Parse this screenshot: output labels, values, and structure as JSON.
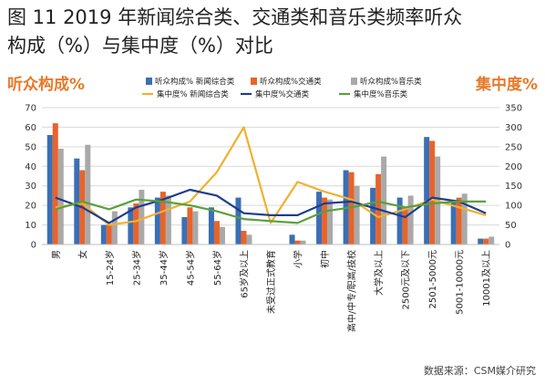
{
  "title": {
    "line1": "图 11 2019 年新闻综合类、交通类和音乐类频率听众",
    "line2": "构成（%）与集中度（%）对比"
  },
  "source": "数据来源：CSM媒介研究",
  "chart_data": {
    "type": "bar",
    "ylabel_left": "听众构成%",
    "ylabel_right": "集中度%",
    "ylim_left": [
      0,
      70
    ],
    "ylim_right": [
      0,
      350
    ],
    "yticks_left": [
      "0",
      "10",
      "20",
      "30",
      "40",
      "50",
      "60",
      "70"
    ],
    "yticks_right": [
      "0",
      "50",
      "100",
      "150",
      "200",
      "250",
      "300",
      "350"
    ],
    "legend_position": "top",
    "categories": [
      "男",
      "女",
      "15-24岁",
      "25-34岁",
      "35-44岁",
      "45-54岁",
      "55-64岁",
      "65岁及以上",
      "未受过正式教育",
      "小学",
      "初中",
      "高中/中专/职高/技校",
      "大学及以上",
      "2500元及以下",
      "2501-5000元",
      "5001-10000元",
      "10001及以上"
    ],
    "bar_series": [
      {
        "name": "听众构成% 新闻综合类",
        "color": "#3a6fb5",
        "values": [
          56,
          44,
          10,
          19,
          24,
          14,
          19,
          24,
          0,
          5,
          27,
          38,
          29,
          24,
          55,
          22,
          3
        ]
      },
      {
        "name": "听众构成%交通类",
        "color": "#e8632a",
        "values": [
          62,
          38,
          10,
          21,
          27,
          19,
          12,
          7,
          0,
          2,
          24,
          37,
          36,
          19,
          53,
          24,
          3
        ]
      },
      {
        "name": "听众构成%音乐类",
        "color": "#a9a9a9",
        "values": [
          49,
          51,
          17,
          28,
          25,
          17,
          9,
          5,
          0,
          2,
          23,
          30,
          45,
          25,
          45,
          26,
          4
        ]
      }
    ],
    "line_series": [
      {
        "name": "集中度% 新闻综合类",
        "color": "#f0b030",
        "values": [
          95,
          105,
          50,
          60,
          85,
          110,
          185,
          300,
          55,
          160,
          135,
          115,
          70,
          90,
          115,
          95,
          75
        ]
      },
      {
        "name": "集中度%交通类",
        "color": "#1f3d8c",
        "values": [
          120,
          95,
          55,
          95,
          115,
          140,
          125,
          80,
          75,
          75,
          105,
          110,
          90,
          70,
          120,
          110,
          80
        ]
      },
      {
        "name": "集中度%音乐类",
        "color": "#5aa03c",
        "values": [
          90,
          110,
          90,
          115,
          110,
          100,
          85,
          65,
          60,
          55,
          85,
          95,
          110,
          95,
          105,
          110,
          110
        ]
      }
    ]
  }
}
